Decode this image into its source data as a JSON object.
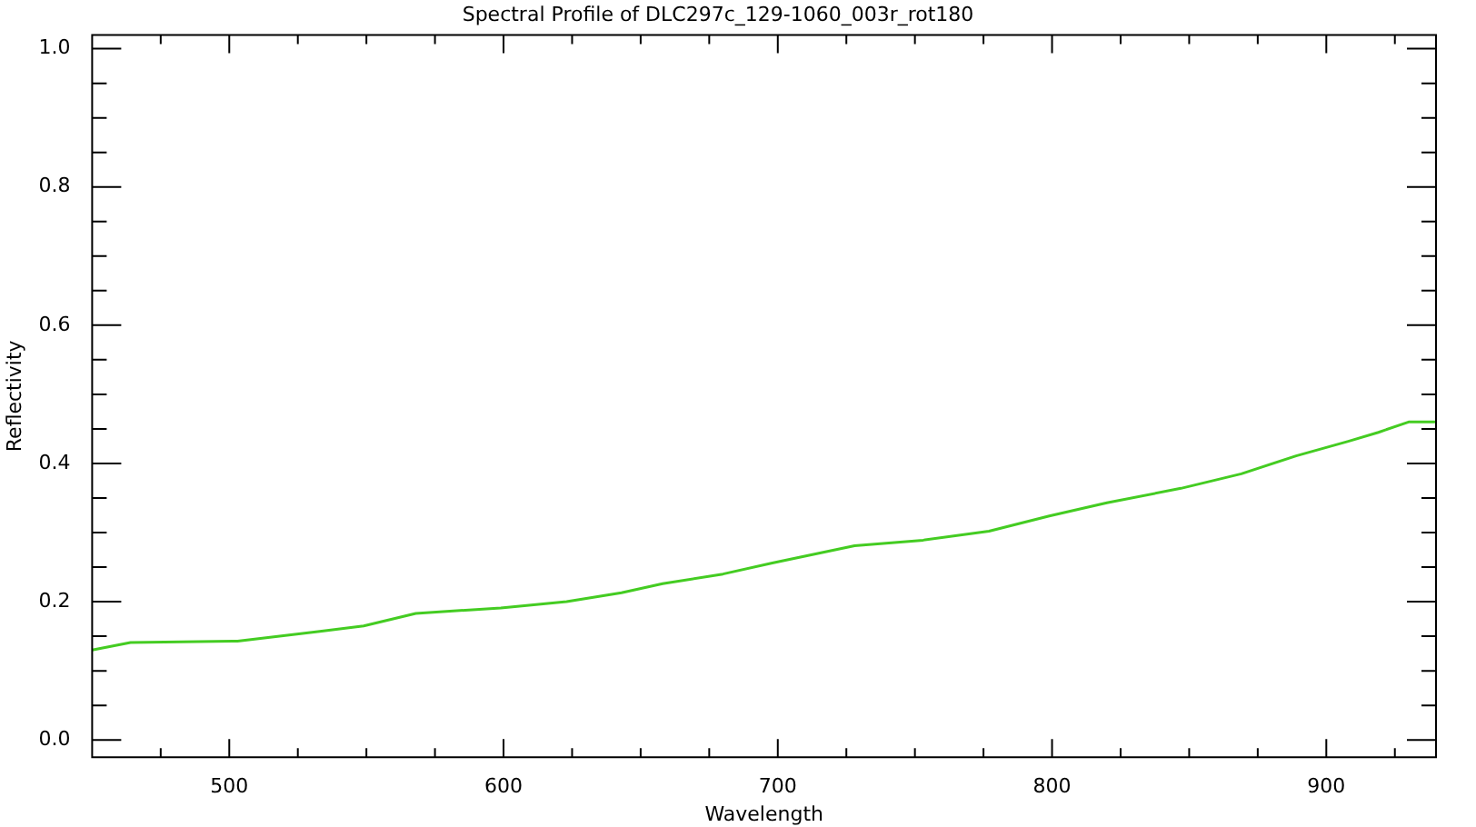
{
  "chart_data": {
    "type": "line",
    "title": "Spectral Profile of DLC297c_129-1060_003r_rot180",
    "xlabel": "Wavelength",
    "ylabel": "Reflectivity",
    "x": [
      450,
      464,
      503,
      533,
      549,
      568,
      599,
      623,
      643,
      658,
      680,
      698,
      728,
      753,
      777,
      799,
      820,
      847,
      869,
      889,
      908,
      919,
      930,
      940
    ],
    "series": [
      {
        "color": "#44cc22",
        "values": [
          0.13,
          0.141,
          0.143,
          0.157,
          0.165,
          0.183,
          0.191,
          0.2,
          0.213,
          0.226,
          0.24,
          0.256,
          0.281,
          0.289,
          0.302,
          0.324,
          0.343,
          0.364,
          0.385,
          0.411,
          0.432,
          0.445,
          0.46,
          0.46
        ]
      }
    ],
    "xlim": [
      450,
      940
    ],
    "xticks": [
      {
        "value": 475,
        "label": null
      },
      500,
      {
        "value": 525,
        "label": null
      },
      {
        "value": 550,
        "label": null
      },
      {
        "value": 575,
        "label": null
      },
      600,
      {
        "value": 625,
        "label": null
      },
      {
        "value": 650,
        "label": null
      },
      {
        "value": 675,
        "label": null
      },
      700,
      {
        "value": 725,
        "label": null
      },
      {
        "value": 750,
        "label": null
      },
      {
        "value": 775,
        "label": null
      },
      800,
      {
        "value": 825,
        "label": null
      },
      {
        "value": 850,
        "label": null
      },
      {
        "value": 875,
        "label": null
      },
      900,
      {
        "value": 925,
        "label": null
      }
    ],
    "ylim": [
      -0.025,
      1.02
    ],
    "yticks": [
      {
        "value": 0,
        "label": "0.0"
      },
      {
        "value": 0.05,
        "label": null
      },
      {
        "value": 0.1,
        "label": null
      },
      {
        "value": 0.15,
        "label": null
      },
      0.2,
      {
        "value": 0.25,
        "label": null
      },
      {
        "value": 0.3,
        "label": null
      },
      {
        "value": 0.35,
        "label": null
      },
      0.4,
      {
        "value": 0.45,
        "label": null
      },
      {
        "value": 0.5,
        "label": null
      },
      {
        "value": 0.55,
        "label": null
      },
      0.6,
      {
        "value": 0.65,
        "label": null
      },
      {
        "value": 0.7,
        "label": null
      },
      {
        "value": 0.75,
        "label": null
      },
      0.8,
      {
        "value": 0.85,
        "label": null
      },
      {
        "value": 0.9,
        "label": null
      },
      {
        "value": 0.95,
        "label": null
      },
      {
        "value": 1,
        "label": "1.0"
      }
    ],
    "marker": "none",
    "line_style": "solid"
  }
}
